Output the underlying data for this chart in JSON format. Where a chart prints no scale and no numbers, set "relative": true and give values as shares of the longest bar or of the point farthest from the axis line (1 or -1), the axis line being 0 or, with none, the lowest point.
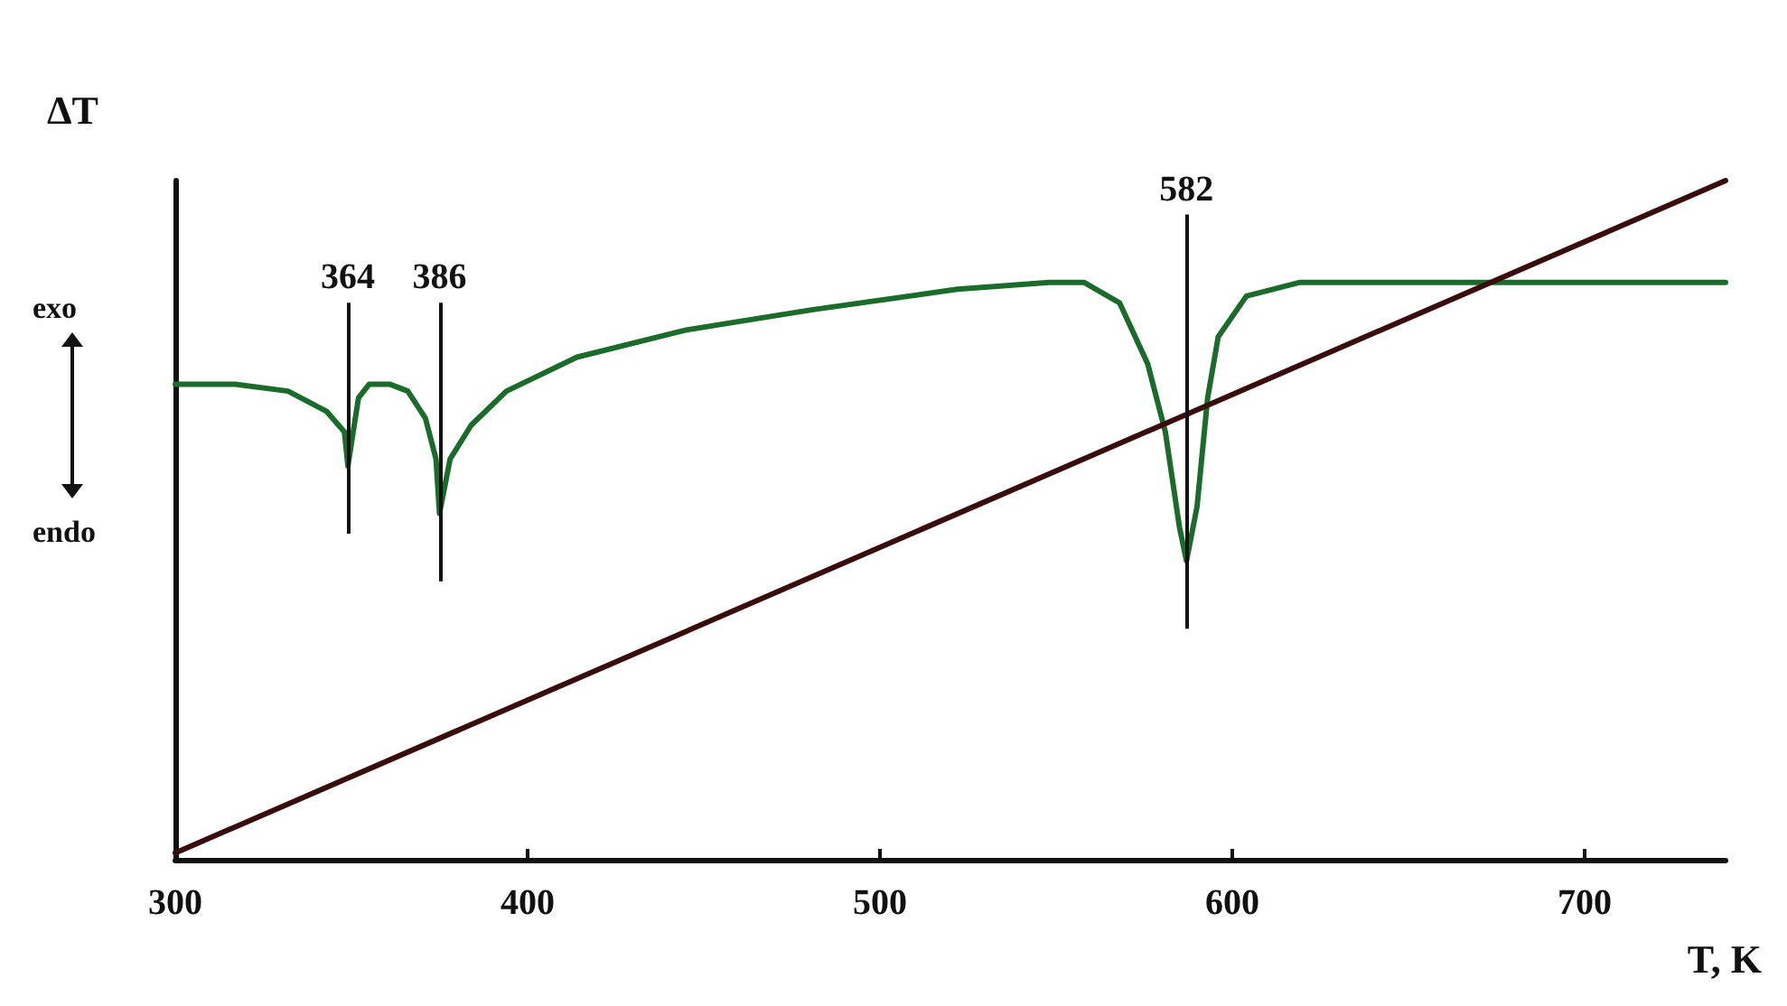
{
  "chart_data": {
    "type": "line",
    "relative": true,
    "xlabel": "T, K",
    "ylabel": "ΔT",
    "xlim": [
      300,
      740
    ],
    "xticks": [
      300,
      400,
      500,
      600,
      700
    ],
    "grid": false,
    "marker": "none",
    "line_style": "solid",
    "series": [
      {
        "color": "#1b6b2a",
        "x": [
          300,
          317,
          332,
          343,
          348,
          349,
          352,
          355,
          361,
          366,
          371,
          374,
          375,
          378,
          384,
          394,
          414,
          445,
          481,
          522,
          548,
          558,
          568,
          576,
          581,
          585,
          587,
          590,
          593,
          596,
          604,
          619,
          661,
          702,
          740
        ],
        "values": [
          0.7,
          0.7,
          0.69,
          0.66,
          0.63,
          0.58,
          0.68,
          0.7,
          0.7,
          0.69,
          0.65,
          0.59,
          0.51,
          0.59,
          0.64,
          0.69,
          0.74,
          0.78,
          0.81,
          0.84,
          0.85,
          0.85,
          0.82,
          0.73,
          0.63,
          0.49,
          0.44,
          0.52,
          0.68,
          0.77,
          0.83,
          0.85,
          0.85,
          0.85,
          0.85
        ]
      },
      {
        "color": "#3a0d0d",
        "x": [
          300,
          740
        ],
        "values": [
          0.01,
          1
        ]
      }
    ],
    "annotations": [
      "exo",
      "endo",
      "364",
      "386",
      "582"
    ]
  }
}
